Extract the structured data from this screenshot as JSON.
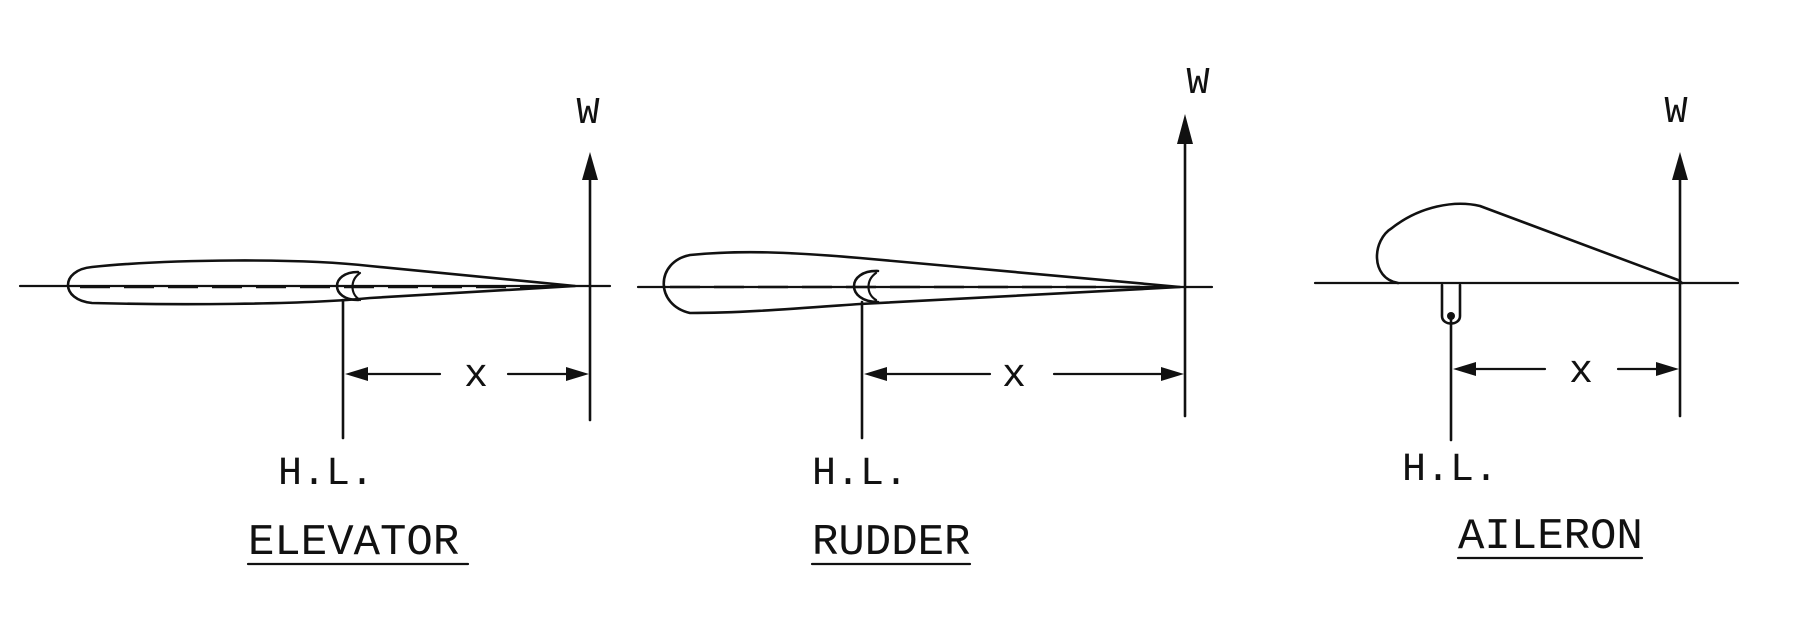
{
  "panels": [
    {
      "id": "elevator",
      "title": "ELEVATOR",
      "force_label": "W",
      "distance_label": "x",
      "hinge_label": "H.L."
    },
    {
      "id": "rudder",
      "title": "RUDDER",
      "force_label": "W",
      "distance_label": "x",
      "hinge_label": "H.L."
    },
    {
      "id": "aileron",
      "title": "AILERON",
      "force_label": "W",
      "distance_label": "x",
      "hinge_label": "H.L."
    }
  ]
}
